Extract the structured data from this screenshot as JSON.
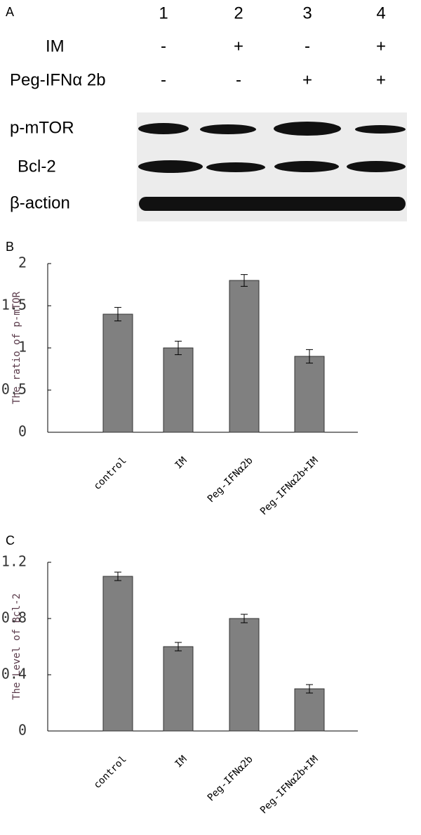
{
  "panel_a": {
    "label": "A",
    "lanes": [
      "1",
      "2",
      "3",
      "4"
    ],
    "rows": [
      {
        "name": "IM",
        "signs": [
          "-",
          "+",
          "-",
          "+"
        ]
      },
      {
        "name": "Peg-IFNα 2b",
        "signs": [
          "-",
          "-",
          "+",
          "+"
        ]
      }
    ],
    "bands": [
      "p-mTOR",
      "Bcl-2",
      "β-action"
    ]
  },
  "chart_data": [
    {
      "type": "bar",
      "label": "B",
      "y_label": "The ratio of p-mTOR",
      "categories": [
        "control",
        "IM",
        "Peg-IFNα2b",
        "Peg-IFNα2b+IM"
      ],
      "values": [
        1.4,
        1.0,
        1.8,
        0.9
      ],
      "errors": [
        0.08,
        0.08,
        0.07,
        0.08
      ],
      "color": "#808080",
      "ylim": [
        0,
        2
      ],
      "yticks": [
        0,
        0.5,
        1,
        1.5,
        2
      ]
    },
    {
      "type": "bar",
      "label": "C",
      "y_label": "The Level of Bcl-2",
      "categories": [
        "control",
        "IM",
        "Peg-IFNα2b",
        "Peg-IFNα2b+IM"
      ],
      "values": [
        1.1,
        0.6,
        0.8,
        0.3
      ],
      "errors": [
        0.03,
        0.03,
        0.03,
        0.03
      ],
      "color": "#808080",
      "ylim": [
        0,
        1.2
      ],
      "yticks": [
        0,
        0.4,
        0.8,
        1.2
      ]
    }
  ]
}
